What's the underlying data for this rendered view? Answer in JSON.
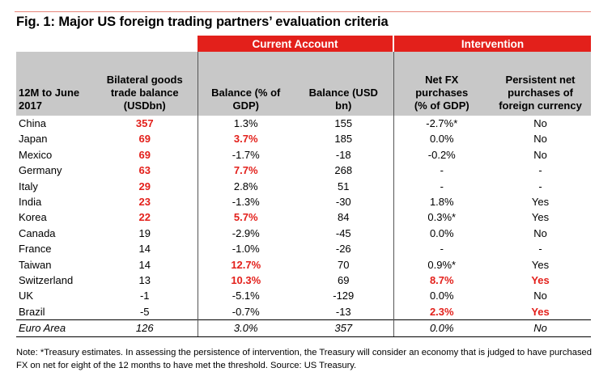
{
  "title": "Fig. 1: Major US foreign trading partners’ evaluation criteria",
  "groups": {
    "current_account": "Current Account",
    "intervention": "Intervention"
  },
  "headers": {
    "period": [
      "12M to June",
      "2017"
    ],
    "bilateral": [
      "Bilateral goods",
      "trade balance",
      "(USDbn)"
    ],
    "bal_gdp": [
      "Balance (% of",
      "GDP)"
    ],
    "bal_usd": [
      "Balance (USD",
      "bn)"
    ],
    "net_fx": [
      "Net FX",
      "purchases",
      "(% of GDP)"
    ],
    "persistent": [
      "Persistent net",
      "purchases of",
      "foreign currency"
    ]
  },
  "rows": [
    {
      "name": "China",
      "trade": "357",
      "bal_gdp": "1.3%",
      "bal_usd": "155",
      "net_fx": "-2.7%*",
      "persist": "No"
    },
    {
      "name": "Japan",
      "trade": "69",
      "bal_gdp": "3.7%",
      "bal_usd": "185",
      "net_fx": "0.0%",
      "persist": "No"
    },
    {
      "name": "Mexico",
      "trade": "69",
      "bal_gdp": "-1.7%",
      "bal_usd": "-18",
      "net_fx": "-0.2%",
      "persist": "No"
    },
    {
      "name": "Germany",
      "trade": "63",
      "bal_gdp": "7.7%",
      "bal_usd": "268",
      "net_fx": "-",
      "persist": "-"
    },
    {
      "name": "Italy",
      "trade": "29",
      "bal_gdp": "2.8%",
      "bal_usd": "51",
      "net_fx": "-",
      "persist": "-"
    },
    {
      "name": "India",
      "trade": "23",
      "bal_gdp": "-1.3%",
      "bal_usd": "-30",
      "net_fx": "1.8%",
      "persist": "Yes"
    },
    {
      "name": "Korea",
      "trade": "22",
      "bal_gdp": "5.7%",
      "bal_usd": "84",
      "net_fx": "0.3%*",
      "persist": "Yes"
    },
    {
      "name": "Canada",
      "trade": "19",
      "bal_gdp": "-2.9%",
      "bal_usd": "-45",
      "net_fx": "0.0%",
      "persist": "No"
    },
    {
      "name": "France",
      "trade": "14",
      "bal_gdp": "-1.0%",
      "bal_usd": "-26",
      "net_fx": "-",
      "persist": "-"
    },
    {
      "name": "Taiwan",
      "trade": "14",
      "bal_gdp": "12.7%",
      "bal_usd": "70",
      "net_fx": "0.9%*",
      "persist": "Yes"
    },
    {
      "name": "Switzerland",
      "trade": "13",
      "bal_gdp": "10.3%",
      "bal_usd": "69",
      "net_fx": "8.7%",
      "persist": "Yes"
    },
    {
      "name": "UK",
      "trade": "-1",
      "bal_gdp": "-5.1%",
      "bal_usd": "-129",
      "net_fx": "0.0%",
      "persist": "No"
    },
    {
      "name": "Brazil",
      "trade": "-5",
      "bal_gdp": "-0.7%",
      "bal_usd": "-13",
      "net_fx": "2.3%",
      "persist": "Yes"
    }
  ],
  "total": {
    "name": "Euro Area",
    "trade": "126",
    "bal_gdp": "3.0%",
    "bal_usd": "357",
    "net_fx": "0.0%",
    "persist": "No"
  },
  "note": "Note: *Treasury estimates. In assessing the persistence of intervention, the Treasury will consider an economy that is judged to have purchased FX on net for eight of the 12 months to have met the threshold. Source: US Treasury.",
  "colors": {
    "accent_red": "#e3201b",
    "header_gray": "#c8c8c8"
  }
}
